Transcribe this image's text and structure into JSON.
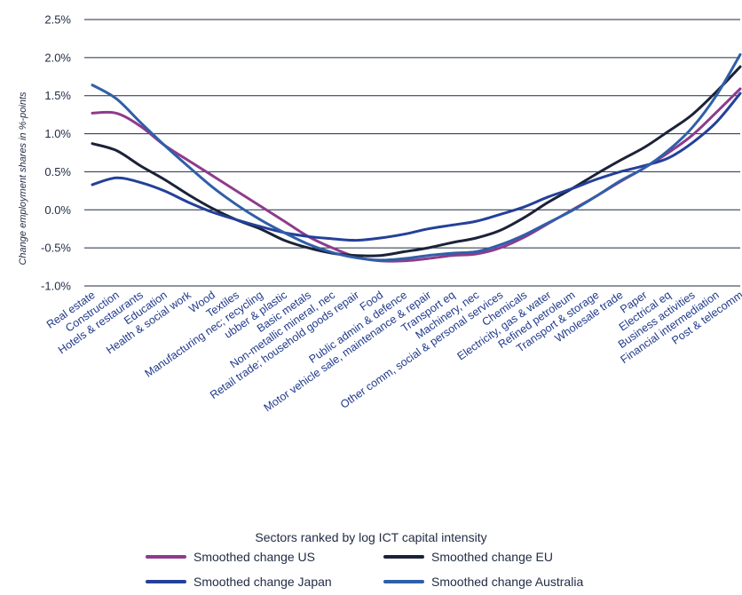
{
  "chart_data": {
    "type": "line",
    "xlabel": "Sectors ranked by log ICT capital intensity",
    "ylabel": "Change employment shares in %-points",
    "ylim": [
      -1.0,
      2.5
    ],
    "yticks": [
      "2.5%",
      "2.0%",
      "1.5%",
      "1.0%",
      "0.5%",
      "0.0%",
      "-0.5%",
      "-1.0%"
    ],
    "ytick_values": [
      2.5,
      2.0,
      1.5,
      1.0,
      0.5,
      0.0,
      -0.5,
      -1.0
    ],
    "grid": "horizontal",
    "legend_position": "bottom",
    "categories": [
      "Real estate",
      "Construction",
      "Hotels & restaurants",
      "Education",
      "Health & social work",
      "Wood",
      "Textiles",
      "Manufacturing nec; recycling",
      "ubber & plastic",
      "Basic metals",
      "Non-metallic mineral, nec",
      "Retail trade; household goods repair",
      "Food",
      "Public admin & defence",
      "Motor vehicle sale, maintenance & repair",
      "Transport eq",
      "Machinery, nec",
      "Other comm, social & personal services",
      "Chemicals",
      "Electricity, gas & water",
      "Refined petroleum",
      "Transport & storage",
      "Wholesale trade",
      "Paper",
      "Electrical eq",
      "Business activities",
      "Financial intermediation",
      "Post & telecomm"
    ],
    "series": [
      {
        "name": "Smoothed change US",
        "color": "#8e3b8c",
        "values": [
          1.27,
          1.27,
          1.1,
          0.85,
          0.65,
          0.45,
          0.25,
          0.05,
          -0.15,
          -0.35,
          -0.5,
          -0.62,
          -0.67,
          -0.67,
          -0.64,
          -0.6,
          -0.58,
          -0.5,
          -0.36,
          -0.18,
          0.0,
          0.18,
          0.37,
          0.55,
          0.75,
          0.98,
          1.28,
          1.59
        ]
      },
      {
        "name": "Smoothed change EU",
        "color": "#1b2238",
        "values": [
          0.87,
          0.78,
          0.58,
          0.4,
          0.2,
          0.02,
          -0.13,
          -0.25,
          -0.4,
          -0.5,
          -0.57,
          -0.6,
          -0.6,
          -0.55,
          -0.5,
          -0.43,
          -0.37,
          -0.27,
          -0.1,
          0.1,
          0.28,
          0.47,
          0.65,
          0.82,
          1.03,
          1.25,
          1.55,
          1.88
        ]
      },
      {
        "name": "Smoothed change Japan",
        "color": "#23409a",
        "values": [
          0.33,
          0.42,
          0.36,
          0.25,
          0.1,
          -0.03,
          -0.13,
          -0.22,
          -0.3,
          -0.35,
          -0.38,
          -0.4,
          -0.37,
          -0.32,
          -0.25,
          -0.2,
          -0.15,
          -0.06,
          0.04,
          0.17,
          0.28,
          0.4,
          0.5,
          0.58,
          0.68,
          0.88,
          1.15,
          1.53
        ]
      },
      {
        "name": "Smoothed change Australia",
        "color": "#2f5fa8",
        "values": [
          1.64,
          1.46,
          1.15,
          0.85,
          0.57,
          0.3,
          0.07,
          -0.13,
          -0.3,
          -0.45,
          -0.56,
          -0.63,
          -0.66,
          -0.64,
          -0.6,
          -0.57,
          -0.55,
          -0.46,
          -0.33,
          -0.17,
          -0.01,
          0.18,
          0.38,
          0.55,
          0.78,
          1.08,
          1.5,
          2.04
        ]
      }
    ]
  }
}
